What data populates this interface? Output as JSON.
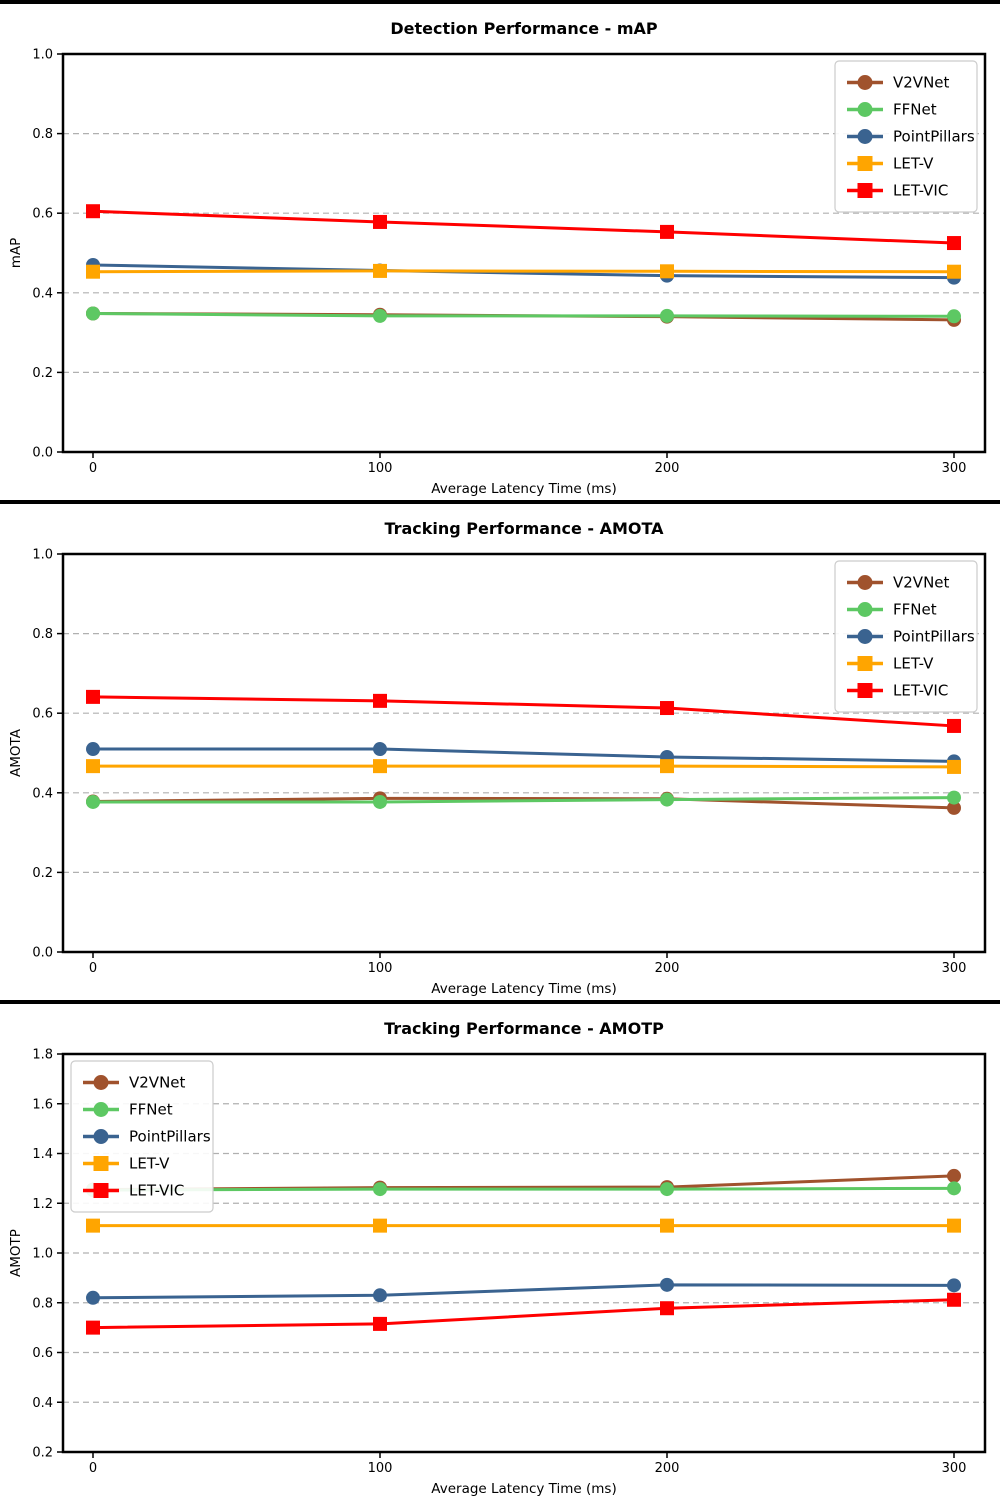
{
  "chart_data": [
    {
      "type": "line",
      "title": "Detection Performance - mAP",
      "xlabel": "Average Latency Time (ms)",
      "ylabel": "mAP",
      "x": [
        0,
        100,
        200,
        300
      ],
      "xticks": [
        0,
        100,
        200,
        300
      ],
      "ylim": [
        0.0,
        1.0
      ],
      "yticks": [
        0.0,
        0.2,
        0.4,
        0.6,
        0.8,
        1.0
      ],
      "grid": true,
      "legend_position": "top-right",
      "series": [
        {
          "name": "V2VNet",
          "color": "#A0522D",
          "marker": "circle",
          "values": [
            0.348,
            0.345,
            0.34,
            0.332
          ]
        },
        {
          "name": "FFNet",
          "color": "#5DC863",
          "marker": "circle",
          "values": [
            0.348,
            0.342,
            0.342,
            0.341
          ]
        },
        {
          "name": "PointPillars",
          "color": "#3A6390",
          "marker": "circle",
          "values": [
            0.47,
            0.456,
            0.443,
            0.438
          ]
        },
        {
          "name": "LET-V",
          "color": "#FFA500",
          "marker": "square",
          "values": [
            0.453,
            0.455,
            0.454,
            0.453
          ]
        },
        {
          "name": "LET-VIC",
          "color": "#FF0000",
          "marker": "square",
          "values": [
            0.605,
            0.578,
            0.553,
            0.525
          ]
        }
      ]
    },
    {
      "type": "line",
      "title": "Tracking Performance - AMOTA",
      "xlabel": "Average Latency Time (ms)",
      "ylabel": "AMOTA",
      "x": [
        0,
        100,
        200,
        300
      ],
      "xticks": [
        0,
        100,
        200,
        300
      ],
      "ylim": [
        0.0,
        1.0
      ],
      "yticks": [
        0.0,
        0.2,
        0.4,
        0.6,
        0.8,
        1.0
      ],
      "grid": true,
      "legend_position": "top-right",
      "series": [
        {
          "name": "V2VNet",
          "color": "#A0522D",
          "marker": "circle",
          "values": [
            0.378,
            0.386,
            0.385,
            0.362
          ]
        },
        {
          "name": "FFNet",
          "color": "#5DC863",
          "marker": "circle",
          "values": [
            0.377,
            0.377,
            0.383,
            0.388
          ]
        },
        {
          "name": "PointPillars",
          "color": "#3A6390",
          "marker": "circle",
          "values": [
            0.51,
            0.51,
            0.49,
            0.479
          ]
        },
        {
          "name": "LET-V",
          "color": "#FFA500",
          "marker": "square",
          "values": [
            0.467,
            0.467,
            0.467,
            0.465
          ]
        },
        {
          "name": "LET-VIC",
          "color": "#FF0000",
          "marker": "square",
          "values": [
            0.641,
            0.631,
            0.613,
            0.568
          ]
        }
      ]
    },
    {
      "type": "line",
      "title": "Tracking Performance - AMOTP",
      "xlabel": "Average Latency Time (ms)",
      "ylabel": "AMOTP",
      "x": [
        0,
        100,
        200,
        300
      ],
      "xticks": [
        0,
        100,
        200,
        300
      ],
      "ylim": [
        0.2,
        1.8
      ],
      "yticks": [
        0.2,
        0.4,
        0.6,
        0.8,
        1.0,
        1.2,
        1.4,
        1.6,
        1.8
      ],
      "grid": true,
      "legend_position": "top-left",
      "series": [
        {
          "name": "V2VNet",
          "color": "#A0522D",
          "marker": "circle",
          "values": [
            1.255,
            1.263,
            1.265,
            1.31
          ]
        },
        {
          "name": "FFNet",
          "color": "#5DC863",
          "marker": "circle",
          "values": [
            1.253,
            1.257,
            1.257,
            1.26
          ]
        },
        {
          "name": "PointPillars",
          "color": "#3A6390",
          "marker": "circle",
          "values": [
            0.82,
            0.83,
            0.872,
            0.87
          ]
        },
        {
          "name": "LET-V",
          "color": "#FFA500",
          "marker": "square",
          "values": [
            1.11,
            1.11,
            1.11,
            1.11
          ]
        },
        {
          "name": "LET-VIC",
          "color": "#FF0000",
          "marker": "square",
          "values": [
            0.7,
            0.715,
            0.778,
            0.812
          ]
        }
      ]
    }
  ],
  "style_colors": {
    "frame": "#000000",
    "grid": "#b0b0b0",
    "legend_border": "#cccccc",
    "text": "#000000"
  }
}
